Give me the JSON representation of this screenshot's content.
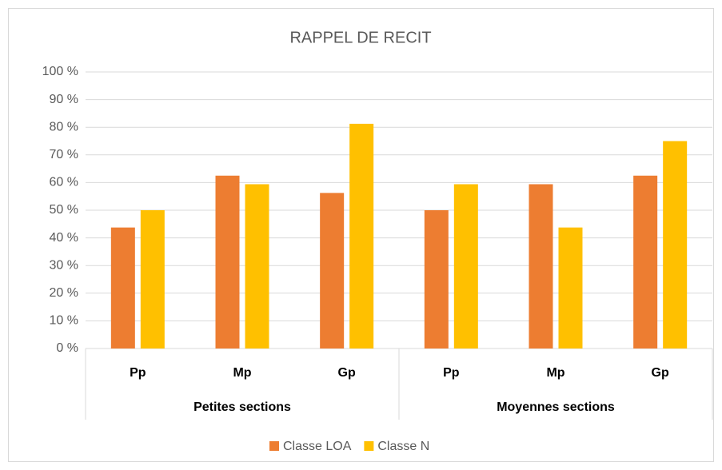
{
  "chart_data": {
    "type": "bar",
    "title": "RAPPEL DE RECIT",
    "groups": [
      {
        "label": "Petites sections",
        "categories": [
          "Pp",
          "Mp",
          "Gp"
        ]
      },
      {
        "label": "Moyennes sections",
        "categories": [
          "Pp",
          "Mp",
          "Gp"
        ]
      }
    ],
    "series": [
      {
        "name": "Classe LOA",
        "color": "#ed7d31",
        "values": [
          43.75,
          62.5,
          56.25,
          50,
          59.4,
          62.5
        ]
      },
      {
        "name": "Classe N",
        "color": "#ffc000",
        "values": [
          50,
          59.4,
          81.25,
          59.4,
          43.75,
          75
        ]
      }
    ],
    "ylim": [
      0,
      100
    ],
    "yticks": [
      {
        "value": 0,
        "label": "0 %"
      },
      {
        "value": 10,
        "label": "10 %"
      },
      {
        "value": 20,
        "label": "20 %"
      },
      {
        "value": 30,
        "label": "30 %"
      },
      {
        "value": 40,
        "label": "40 %"
      },
      {
        "value": 50,
        "label": "50 %"
      },
      {
        "value": 60,
        "label": "60 %"
      },
      {
        "value": 70,
        "label": "70 %"
      },
      {
        "value": 80,
        "label": "80 %"
      },
      {
        "value": 90,
        "label": "90 %"
      },
      {
        "value": 100,
        "label": "100 %"
      }
    ],
    "grid": true,
    "legend": "bottom"
  }
}
